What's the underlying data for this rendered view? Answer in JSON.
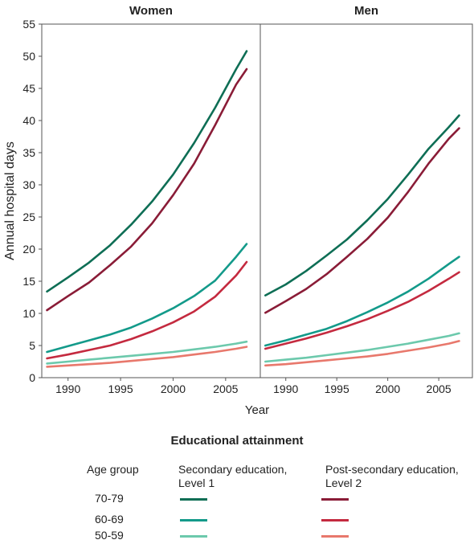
{
  "chart_data": {
    "type": "line",
    "panels": [
      {
        "title": "Women",
        "series": [
          {
            "key": "secondary-70-79",
            "color": "#0e6e55",
            "x": [
              1988,
              1990,
              1992,
              1994,
              1996,
              1998,
              2000,
              2002,
              2004,
              2006,
              2007
            ],
            "y": [
              13.4,
              15.6,
              17.9,
              20.6,
              23.8,
              27.4,
              31.6,
              36.5,
              42.0,
              48.0,
              50.8
            ]
          },
          {
            "key": "secondary-60-69",
            "color": "#139a8a",
            "x": [
              1988,
              1990,
              1992,
              1994,
              1996,
              1998,
              2000,
              2002,
              2004,
              2006,
              2007
            ],
            "y": [
              4.0,
              4.9,
              5.8,
              6.7,
              7.8,
              9.2,
              10.8,
              12.7,
              15.1,
              18.8,
              20.8
            ]
          },
          {
            "key": "secondary-50-59",
            "color": "#6cc9ac",
            "x": [
              1988,
              1990,
              1992,
              1994,
              1996,
              1998,
              2000,
              2002,
              2004,
              2006,
              2007
            ],
            "y": [
              2.2,
              2.5,
              2.8,
              3.1,
              3.4,
              3.7,
              4.0,
              4.4,
              4.8,
              5.3,
              5.6
            ]
          },
          {
            "key": "postsecondary-70-79",
            "color": "#8a1c37",
            "x": [
              1988,
              1990,
              1992,
              1994,
              1996,
              1998,
              2000,
              2002,
              2004,
              2006,
              2007
            ],
            "y": [
              10.5,
              12.7,
              14.8,
              17.5,
              20.4,
              24.0,
              28.4,
              33.3,
              39.3,
              45.6,
              48.0
            ]
          },
          {
            "key": "postsecondary-60-69",
            "color": "#c42a3f",
            "x": [
              1988,
              1990,
              1992,
              1994,
              1996,
              1998,
              2000,
              2002,
              2004,
              2006,
              2007
            ],
            "y": [
              3.0,
              3.6,
              4.3,
              5.0,
              6.0,
              7.2,
              8.6,
              10.3,
              12.6,
              15.9,
              18.0
            ]
          },
          {
            "key": "postsecondary-50-59",
            "color": "#e8786c",
            "x": [
              1988,
              1990,
              1992,
              1994,
              1996,
              1998,
              2000,
              2002,
              2004,
              2006,
              2007
            ],
            "y": [
              1.7,
              1.9,
              2.1,
              2.3,
              2.6,
              2.9,
              3.2,
              3.6,
              4.0,
              4.5,
              4.8
            ]
          }
        ]
      },
      {
        "title": "Men",
        "series": [
          {
            "key": "secondary-70-79",
            "color": "#0e6e55",
            "x": [
              1988,
              1990,
              1992,
              1994,
              1996,
              1998,
              2000,
              2002,
              2004,
              2006,
              2007
            ],
            "y": [
              12.8,
              14.5,
              16.6,
              19.0,
              21.5,
              24.5,
              27.8,
              31.6,
              35.6,
              39.0,
              40.8
            ]
          },
          {
            "key": "secondary-60-69",
            "color": "#139a8a",
            "x": [
              1988,
              1990,
              1992,
              1994,
              1996,
              1998,
              2000,
              2002,
              2004,
              2006,
              2007
            ],
            "y": [
              5.0,
              5.8,
              6.7,
              7.6,
              8.8,
              10.2,
              11.7,
              13.4,
              15.4,
              17.7,
              18.8
            ]
          },
          {
            "key": "secondary-50-59",
            "color": "#6cc9ac",
            "x": [
              1988,
              1990,
              1992,
              1994,
              1996,
              1998,
              2000,
              2002,
              2004,
              2006,
              2007
            ],
            "y": [
              2.5,
              2.8,
              3.1,
              3.5,
              3.9,
              4.3,
              4.8,
              5.3,
              5.9,
              6.5,
              6.9
            ]
          },
          {
            "key": "postsecondary-70-79",
            "color": "#8a1c37",
            "x": [
              1988,
              1990,
              1992,
              1994,
              1996,
              1998,
              2000,
              2002,
              2004,
              2006,
              2007
            ],
            "y": [
              10.1,
              11.9,
              13.8,
              16.1,
              18.8,
              21.6,
              24.9,
              28.9,
              33.3,
              37.2,
              38.8
            ]
          },
          {
            "key": "postsecondary-60-69",
            "color": "#c42a3f",
            "x": [
              1988,
              1990,
              1992,
              1994,
              1996,
              1998,
              2000,
              2002,
              2004,
              2006,
              2007
            ],
            "y": [
              4.5,
              5.3,
              6.1,
              7.0,
              8.0,
              9.1,
              10.4,
              11.8,
              13.5,
              15.4,
              16.4
            ]
          },
          {
            "key": "postsecondary-50-59",
            "color": "#e8786c",
            "x": [
              1988,
              1990,
              1992,
              1994,
              1996,
              1998,
              2000,
              2002,
              2004,
              2006,
              2007
            ],
            "y": [
              1.9,
              2.1,
              2.4,
              2.7,
              3.0,
              3.3,
              3.7,
              4.2,
              4.7,
              5.3,
              5.7
            ]
          }
        ]
      }
    ],
    "xlabel": "Year",
    "ylabel": "Annual hospital days",
    "xlim": [
      1987.5,
      2008.3
    ],
    "ylim": [
      0,
      55
    ],
    "xticks": [
      1990,
      1995,
      2000,
      2005
    ],
    "yticks": [
      0,
      5,
      10,
      15,
      20,
      25,
      30,
      35,
      40,
      45,
      50,
      55
    ],
    "grid": false
  },
  "legend": {
    "title": "Educational attainment",
    "age_group_header": "Age group",
    "col1_header": "Secondary education,\nLevel 1",
    "col2_header": "Post-secondary education,\nLevel 2",
    "rows": [
      {
        "age": "70-79",
        "col1_color": "#0e6e55",
        "col2_color": "#8a1c37"
      },
      {
        "age": "60-69",
        "col1_color": "#139a8a",
        "col2_color": "#c42a3f"
      },
      {
        "age": "50-59",
        "col1_color": "#6cc9ac",
        "col2_color": "#e8786c"
      }
    ]
  }
}
